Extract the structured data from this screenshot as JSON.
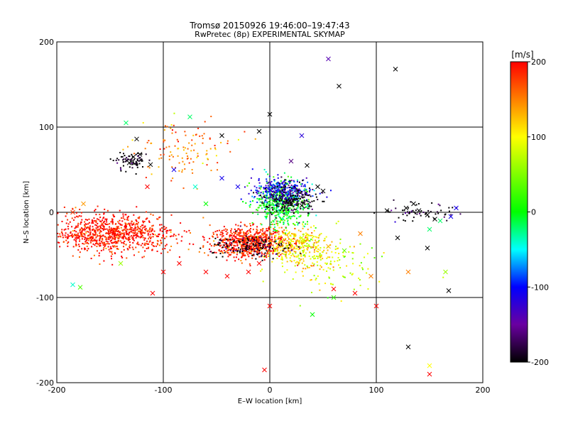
{
  "chart_data": {
    "type": "scatter",
    "title": "Tromsø 20150926 19:46:00–19:47:43",
    "subtitle": "RwPretec (8p) EXPERIMENTAL SKYMAP",
    "xlabel": "E–W location [km]",
    "ylabel": "N–S location [km]",
    "xlim": [
      -200,
      200
    ],
    "ylim": [
      -200,
      200
    ],
    "x_ticks": [
      -200,
      -100,
      0,
      100,
      200
    ],
    "y_ticks": [
      -200,
      -100,
      0,
      100,
      200
    ],
    "grid": true,
    "colorbar": {
      "label": "[m/s]",
      "range": [
        -200,
        200
      ],
      "ticks": [
        200,
        100,
        0,
        -100,
        -200
      ],
      "colormap": "rainbow: black(-200) → violet → blue(-100) → cyan → green(0) → yellow(100) → red(200)"
    },
    "series": [
      {
        "marker": "dot",
        "description": "dense point measurements, colored by velocity",
        "clusters": [
          {
            "center": [
              -150,
              -25
            ],
            "spread": [
              48,
              18
            ],
            "count": 900,
            "velocity": 195
          },
          {
            "center": [
              -20,
              -35
            ],
            "spread": [
              30,
              15
            ],
            "count": 700,
            "velocity": 190
          },
          {
            "center": [
              25,
              -40
            ],
            "spread": [
              25,
              18
            ],
            "count": 350,
            "velocity": 110
          },
          {
            "center": [
              10,
              10
            ],
            "spread": [
              20,
              22
            ],
            "count": 500,
            "velocity": 0
          },
          {
            "center": [
              10,
              25
            ],
            "spread": [
              22,
              12
            ],
            "count": 300,
            "velocity": -110
          },
          {
            "center": [
              20,
              15
            ],
            "spread": [
              20,
              15
            ],
            "count": 200,
            "velocity": -200
          },
          {
            "center": [
              -130,
              60
            ],
            "spread": [
              12,
              8
            ],
            "count": 80,
            "velocity": -200
          },
          {
            "center": [
              -20,
              -40
            ],
            "spread": [
              30,
              12
            ],
            "count": 150,
            "velocity": -195
          },
          {
            "center": [
              140,
              0
            ],
            "spread": [
              25,
              8
            ],
            "count": 60,
            "velocity": -200
          },
          {
            "center": [
              -80,
              70
            ],
            "spread": [
              40,
              30
            ],
            "count": 120,
            "velocity": 150
          },
          {
            "center": [
              60,
              -60
            ],
            "spread": [
              40,
              30
            ],
            "count": 120,
            "velocity": 80
          }
        ]
      },
      {
        "marker": "x",
        "description": "cross markers, colored by velocity",
        "points": [
          {
            "x": -128,
            "y": 65,
            "v": -200
          },
          {
            "x": -132,
            "y": 58,
            "v": -200
          },
          {
            "x": -122,
            "y": 68,
            "v": -200
          },
          {
            "x": -112,
            "y": 56,
            "v": -200
          },
          {
            "x": -125,
            "y": 86,
            "v": -200
          },
          {
            "x": -135,
            "y": 105,
            "v": -20
          },
          {
            "x": -75,
            "y": 112,
            "v": -20
          },
          {
            "x": -45,
            "y": 90,
            "v": -200
          },
          {
            "x": -10,
            "y": 95,
            "v": -200
          },
          {
            "x": 0,
            "y": 115,
            "v": -200
          },
          {
            "x": 55,
            "y": 180,
            "v": -140
          },
          {
            "x": 65,
            "y": 148,
            "v": -200
          },
          {
            "x": 118,
            "y": 168,
            "v": -200
          },
          {
            "x": 30,
            "y": 90,
            "v": -120
          },
          {
            "x": 20,
            "y": 60,
            "v": -160
          },
          {
            "x": 35,
            "y": 55,
            "v": -200
          },
          {
            "x": 45,
            "y": 30,
            "v": -200
          },
          {
            "x": 50,
            "y": 25,
            "v": -200
          },
          {
            "x": 30,
            "y": 8,
            "v": -200
          },
          {
            "x": 20,
            "y": 12,
            "v": -200
          },
          {
            "x": 128,
            "y": 5,
            "v": -200
          },
          {
            "x": 140,
            "y": 2,
            "v": -200
          },
          {
            "x": 148,
            "y": -3,
            "v": -200
          },
          {
            "x": 135,
            "y": 10,
            "v": -200
          },
          {
            "x": 155,
            "y": -8,
            "v": -200
          },
          {
            "x": 110,
            "y": 2,
            "v": -200
          },
          {
            "x": 175,
            "y": 5,
            "v": -110
          },
          {
            "x": 170,
            "y": -5,
            "v": -110
          },
          {
            "x": 150,
            "y": -20,
            "v": -20
          },
          {
            "x": 160,
            "y": -10,
            "v": -20
          },
          {
            "x": 148,
            "y": -42,
            "v": -200
          },
          {
            "x": 120,
            "y": -30,
            "v": -200
          },
          {
            "x": -175,
            "y": 10,
            "v": 140
          },
          {
            "x": -185,
            "y": 0,
            "v": 180
          },
          {
            "x": -178,
            "y": -88,
            "v": 30
          },
          {
            "x": -185,
            "y": -85,
            "v": -40
          },
          {
            "x": -110,
            "y": -95,
            "v": 200
          },
          {
            "x": -180,
            "y": -30,
            "v": 200
          },
          {
            "x": -100,
            "y": -70,
            "v": 200
          },
          {
            "x": -85,
            "y": -60,
            "v": 200
          },
          {
            "x": -60,
            "y": -70,
            "v": 200
          },
          {
            "x": -40,
            "y": -75,
            "v": 200
          },
          {
            "x": -20,
            "y": -70,
            "v": 200
          },
          {
            "x": -10,
            "y": -60,
            "v": 200
          },
          {
            "x": 0,
            "y": -110,
            "v": 200
          },
          {
            "x": 40,
            "y": -120,
            "v": 0
          },
          {
            "x": 60,
            "y": -90,
            "v": 200
          },
          {
            "x": 80,
            "y": -95,
            "v": 200
          },
          {
            "x": 100,
            "y": -110,
            "v": 200
          },
          {
            "x": 95,
            "y": -75,
            "v": 150
          },
          {
            "x": 130,
            "y": -70,
            "v": 150
          },
          {
            "x": 165,
            "y": -70,
            "v": 60
          },
          {
            "x": 168,
            "y": -92,
            "v": -200
          },
          {
            "x": 150,
            "y": -180,
            "v": 100
          },
          {
            "x": 150,
            "y": -190,
            "v": 200
          },
          {
            "x": 130,
            "y": -158,
            "v": -200
          },
          {
            "x": -5,
            "y": -185,
            "v": 200
          },
          {
            "x": 60,
            "y": -100,
            "v": 20
          },
          {
            "x": 55,
            "y": -40,
            "v": 130
          },
          {
            "x": 30,
            "y": -30,
            "v": 80
          },
          {
            "x": -60,
            "y": 10,
            "v": 0
          },
          {
            "x": -70,
            "y": 30,
            "v": -40
          },
          {
            "x": -45,
            "y": 40,
            "v": -110
          },
          {
            "x": -30,
            "y": 30,
            "v": -110
          },
          {
            "x": -90,
            "y": 50,
            "v": -110
          },
          {
            "x": -115,
            "y": 30,
            "v": 200
          },
          {
            "x": -175,
            "y": -20,
            "v": 200
          },
          {
            "x": -140,
            "y": -60,
            "v": 60
          },
          {
            "x": 85,
            "y": -25,
            "v": 150
          },
          {
            "x": 70,
            "y": -45,
            "v": 40
          }
        ]
      }
    ]
  }
}
